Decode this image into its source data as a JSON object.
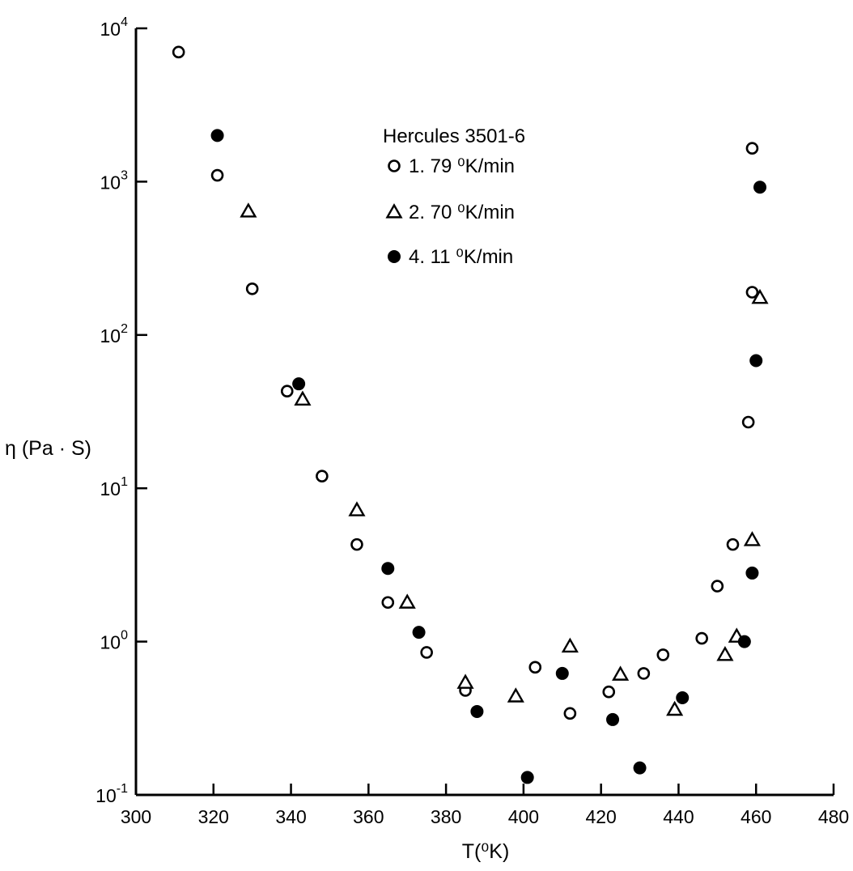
{
  "chart_data": {
    "type": "scatter",
    "title": "",
    "xlabel": "T(⁰K)",
    "ylabel": "η (Pa · S)",
    "xlim": [
      300,
      480
    ],
    "ylim": [
      0.1,
      10000
    ],
    "y_scale": "log",
    "x_ticks": [
      "300",
      "320",
      "340",
      "360",
      "380",
      "400",
      "420",
      "440",
      "460",
      "480"
    ],
    "y_ticks": [
      {
        "base": "10",
        "exp": "4"
      },
      {
        "base": "10",
        "exp": "3"
      },
      {
        "base": "10",
        "exp": "2"
      },
      {
        "base": "10",
        "exp": "1"
      },
      {
        "base": "10",
        "exp": "0"
      },
      {
        "base": "10",
        "exp": "-1"
      }
    ],
    "grid": false,
    "legend": {
      "title": "Hercules 3501-6",
      "placement": "top-center"
    },
    "series": [
      {
        "name": "1. 79 ⁰K/min",
        "marker": "open-circle",
        "points": [
          [
            311,
            7000
          ],
          [
            321,
            1100
          ],
          [
            330,
            200
          ],
          [
            339,
            43
          ],
          [
            348,
            12
          ],
          [
            357,
            4.3
          ],
          [
            365,
            1.8
          ],
          [
            375,
            0.85
          ],
          [
            385,
            0.48
          ],
          [
            403,
            0.68
          ],
          [
            412,
            0.34
          ],
          [
            422,
            0.47
          ],
          [
            431,
            0.62
          ],
          [
            436,
            0.82
          ],
          [
            446,
            1.05
          ],
          [
            450,
            2.3
          ],
          [
            454,
            4.3
          ],
          [
            458,
            27
          ],
          [
            459,
            190
          ],
          [
            459,
            1650
          ]
        ]
      },
      {
        "name": "2. 70 ⁰K/min",
        "marker": "open-triangle",
        "points": [
          [
            329,
            640
          ],
          [
            343,
            38
          ],
          [
            357,
            7.2
          ],
          [
            370,
            1.8
          ],
          [
            385,
            0.54
          ],
          [
            398,
            0.44
          ],
          [
            412,
            0.93
          ],
          [
            425,
            0.61
          ],
          [
            439,
            0.36
          ],
          [
            452,
            0.82
          ],
          [
            455,
            1.08
          ],
          [
            459,
            4.6
          ],
          [
            461,
            175
          ]
        ]
      },
      {
        "name": "4. 11 ⁰K/min",
        "marker": "filled-circle",
        "points": [
          [
            321,
            2000
          ],
          [
            342,
            48
          ],
          [
            365,
            3.0
          ],
          [
            373,
            1.15
          ],
          [
            388,
            0.35
          ],
          [
            401,
            0.13
          ],
          [
            410,
            0.62
          ],
          [
            423,
            0.31
          ],
          [
            430,
            0.15
          ],
          [
            441,
            0.43
          ],
          [
            457,
            1.0
          ],
          [
            459,
            2.8
          ],
          [
            460,
            68
          ],
          [
            461,
            920
          ]
        ]
      }
    ]
  }
}
